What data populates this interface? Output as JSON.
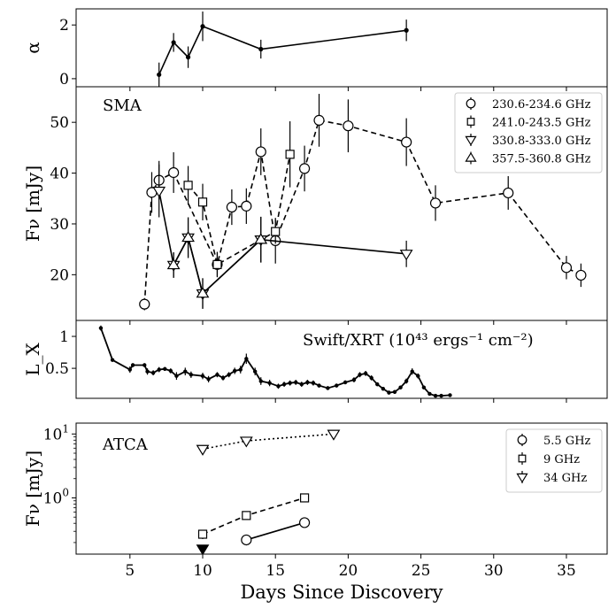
{
  "chart_data": [
    {
      "type": "line",
      "ylabel": "α",
      "xlim": [
        1.3,
        37.8
      ],
      "ylim": [
        -0.3,
        2.6
      ],
      "yticks": [
        0,
        2
      ],
      "show_x_tick_labels": false,
      "series": [
        {
          "x": [
            7,
            8,
            9,
            10,
            14,
            24
          ],
          "y": [
            0.15,
            1.35,
            0.8,
            1.95,
            1.1,
            1.8
          ],
          "yerr": [
            0.45,
            0.35,
            0.4,
            0.55,
            0.35,
            0.4
          ],
          "color": "#000000",
          "marker": "dot",
          "line": "solid"
        }
      ]
    },
    {
      "type": "scatter",
      "label": "SMA",
      "ylabel": "Fν [mJy]",
      "xlim": [
        1.3,
        37.8
      ],
      "ylim": [
        11,
        57
      ],
      "yticks": [
        20,
        30,
        40,
        50
      ],
      "show_x_tick_labels": false,
      "legend_position": "top-right",
      "series": [
        {
          "name": "230.6-234.6 GHz",
          "marker": "circle",
          "line": "dashed",
          "x": [
            6,
            6.5,
            7,
            8,
            11,
            12,
            13,
            14,
            15,
            17,
            18,
            20,
            24,
            26,
            31,
            35,
            36
          ],
          "y": [
            14.2,
            36.2,
            38.6,
            40.1,
            22.0,
            33.3,
            33.5,
            44.2,
            26.7,
            40.9,
            50.4,
            49.3,
            46.1,
            34.1,
            36.1,
            21.4,
            19.9
          ],
          "yerr": [
            1.2,
            4.0,
            3.8,
            4.0,
            2.5,
            3.5,
            3.5,
            4.6,
            4.5,
            4.5,
            5.2,
            5.2,
            4.7,
            3.5,
            3.3,
            2.3,
            2.3
          ]
        },
        {
          "name": "241.0-243.5 GHz",
          "marker": "square",
          "line": "dashed",
          "x": [
            9,
            10,
            11,
            15,
            16
          ],
          "y": [
            37.6,
            34.3,
            22.0,
            28.5,
            43.7
          ],
          "yerr": [
            3.8,
            3.6,
            2.4,
            2.4,
            6.5
          ]
        },
        {
          "name": "330.8-333.0 GHz",
          "marker": "triangle-down",
          "line": "solid",
          "x": [
            7,
            8,
            9,
            10,
            14,
            24
          ],
          "y": [
            36.5,
            21.9,
            27.3,
            16.3,
            26.9,
            24.1
          ],
          "yerr": [
            5.2,
            2.5,
            4.0,
            3.0,
            4.5,
            2.6
          ]
        },
        {
          "name": "357.5-360.8 GHz",
          "marker": "triangle-up",
          "line": "solid",
          "x": [
            8,
            9,
            10,
            14
          ],
          "y": [
            21.9,
            27.3,
            16.3,
            26.9
          ],
          "yerr": [
            2.5,
            4.0,
            3.0,
            4.5
          ]
        }
      ]
    },
    {
      "type": "line",
      "label": "Swift/XRT (10⁴³ ergs⁻¹ cm⁻²)",
      "ylabel": "L_X",
      "xlim": [
        1.3,
        37.8
      ],
      "ylim": [
        0.03,
        1.25
      ],
      "yticks": [
        0.5,
        1.0
      ],
      "show_x_tick_labels": false,
      "series": [
        {
          "marker": "dot",
          "line": "solid",
          "x": [
            3.0,
            3.8,
            5.0,
            5.2,
            6.0,
            6.2,
            6.6,
            7.0,
            7.4,
            7.8,
            8.2,
            8.8,
            9.2,
            10.0,
            10.4,
            11.0,
            11.4,
            11.8,
            12.2,
            12.6,
            13.0,
            13.6,
            14.0,
            14.6,
            15.2,
            15.6,
            16.0,
            16.4,
            16.8,
            17.2,
            17.6,
            18.0,
            18.6,
            19.2,
            19.8,
            20.4,
            20.8,
            21.2,
            21.6,
            22.0,
            22.4,
            22.8,
            23.2,
            23.6,
            24.0,
            24.4,
            24.8,
            25.2,
            25.6,
            26.0,
            26.4,
            27.0
          ],
          "y": [
            1.13,
            0.63,
            0.48,
            0.55,
            0.55,
            0.45,
            0.43,
            0.48,
            0.49,
            0.46,
            0.38,
            0.45,
            0.4,
            0.38,
            0.33,
            0.4,
            0.35,
            0.4,
            0.46,
            0.48,
            0.65,
            0.45,
            0.3,
            0.27,
            0.22,
            0.25,
            0.27,
            0.28,
            0.25,
            0.28,
            0.27,
            0.23,
            0.19,
            0.23,
            0.28,
            0.32,
            0.4,
            0.42,
            0.35,
            0.25,
            0.18,
            0.12,
            0.13,
            0.2,
            0.3,
            0.45,
            0.38,
            0.2,
            0.1,
            0.07,
            0.07,
            0.08
          ],
          "yerr": [
            0.04,
            0.02,
            0.05,
            0.03,
            0.03,
            0.05,
            0.04,
            0.04,
            0.03,
            0.04,
            0.06,
            0.06,
            0.05,
            0.05,
            0.05,
            0.04,
            0.04,
            0.04,
            0.05,
            0.06,
            0.08,
            0.06,
            0.06,
            0.05,
            0.04,
            0.04,
            0.04,
            0.04,
            0.04,
            0.04,
            0.04,
            0.03,
            0.03,
            0.03,
            0.03,
            0.04,
            0.04,
            0.04,
            0.04,
            0.03,
            0.03,
            0.03,
            0.03,
            0.03,
            0.04,
            0.05,
            0.04,
            0.03,
            0.02,
            0.02,
            0.02,
            0.02
          ]
        }
      ]
    },
    {
      "type": "scatter",
      "label": "ATCA",
      "ylabel": "Fν [mJy]",
      "xlabel": "Days Since Discovery",
      "xlim": [
        1.3,
        37.8
      ],
      "log_y": true,
      "ylim_log10": [
        -0.88,
        1.17
      ],
      "yticks": [
        {
          "value": 1,
          "base": "10",
          "exp": "0"
        },
        {
          "value": 10,
          "base": "10",
          "exp": "1"
        }
      ],
      "xticks": [
        5,
        10,
        15,
        20,
        25,
        30,
        35
      ],
      "legend_position": "top-right",
      "series": [
        {
          "name": "5.5 GHz",
          "marker": "circle",
          "line": "solid",
          "x": [
            13,
            17
          ],
          "y": [
            0.22,
            0.41
          ],
          "yerr_frac": [
            0.18,
            0.04
          ]
        },
        {
          "name": "9 GHz",
          "marker": "square",
          "line": "dashed",
          "x": [
            10,
            13,
            17
          ],
          "y": [
            0.27,
            0.53,
            1.0
          ],
          "yerr_frac": [
            0.16,
            0.05,
            0.04
          ]
        },
        {
          "name": "34 GHz",
          "marker": "triangle-down",
          "line": "dotted",
          "x": [
            10,
            13,
            19
          ],
          "y": [
            5.8,
            7.8,
            10.0
          ],
          "yerr_frac": [
            0.04,
            0.03,
            0.03
          ]
        },
        {
          "marker": "triangle-down-filled",
          "line": "none",
          "x": [
            10
          ],
          "y": [
            0.16
          ],
          "yerr_frac": [
            0
          ]
        }
      ]
    }
  ]
}
